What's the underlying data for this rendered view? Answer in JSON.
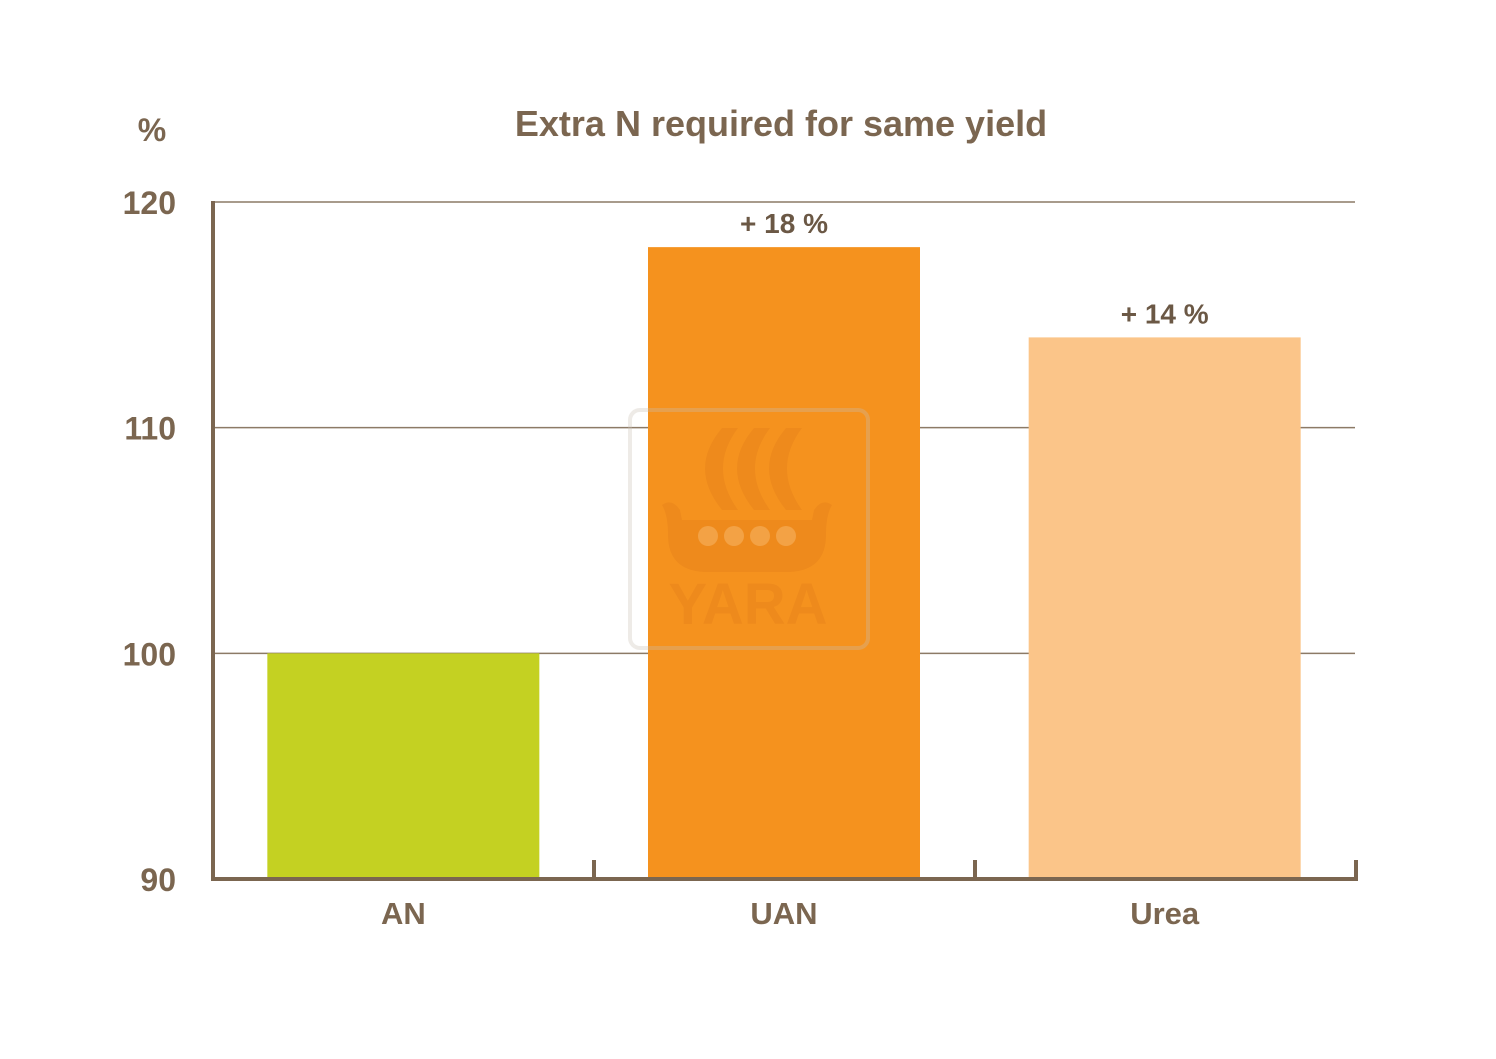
{
  "chart_data": {
    "type": "bar",
    "title": "Extra N required for same yield",
    "ylabel": "%",
    "xlabel": "",
    "categories": [
      "AN",
      "UAN",
      "Urea"
    ],
    "values": [
      100,
      118,
      114
    ],
    "data_labels": [
      "",
      "+ 18 %",
      "+ 14 %"
    ],
    "bar_colors": [
      "#c4d122",
      "#f5921e",
      "#fbc589"
    ],
    "ylim": [
      90,
      120
    ],
    "yticks": [
      90,
      100,
      110,
      120
    ],
    "ytick_labels": [
      "90",
      "100",
      "110",
      "120"
    ],
    "grid": true,
    "legend": "none"
  },
  "watermark": {
    "text": "YARA",
    "icon": "viking-ship-logo-icon",
    "color": "#e07c1a"
  },
  "colors": {
    "text": "#7b6650",
    "axis": "#7b6650",
    "grid": "#8c7a66"
  }
}
